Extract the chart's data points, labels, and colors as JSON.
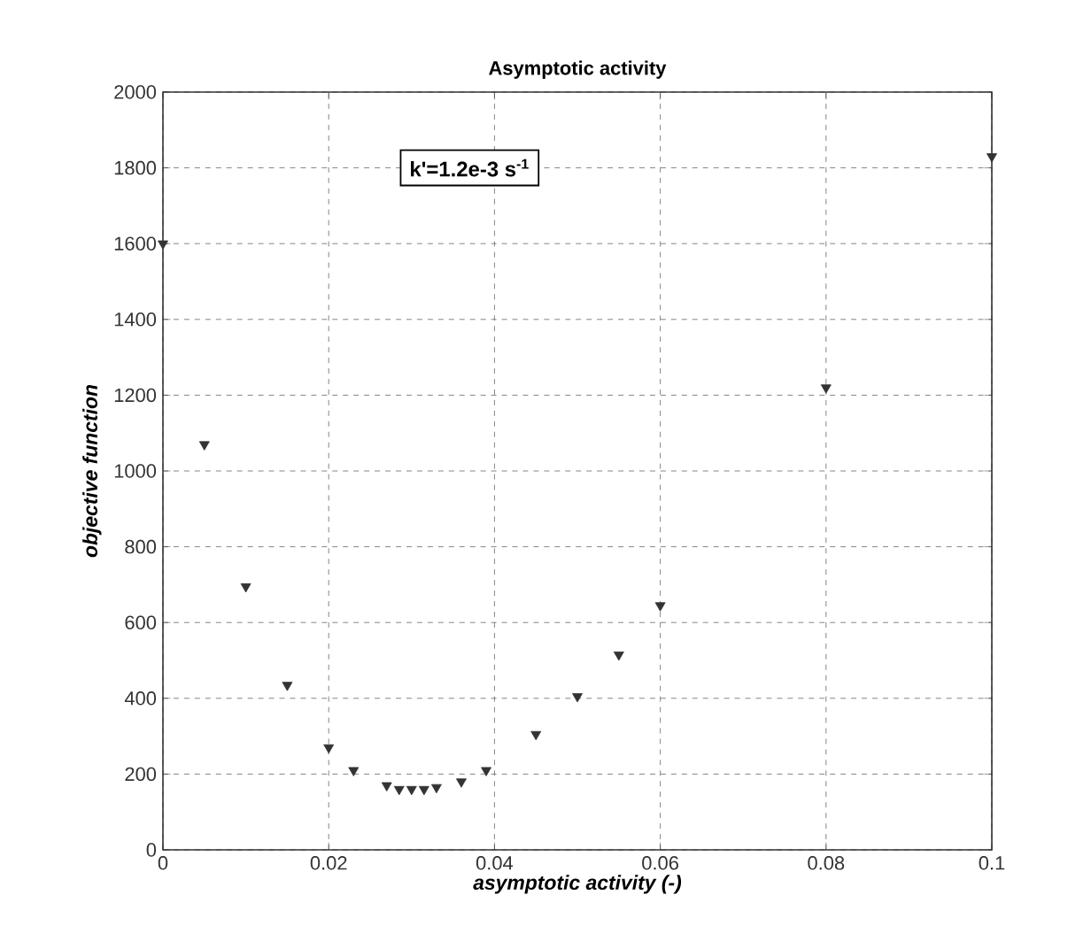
{
  "chart_data": {
    "type": "scatter",
    "title": "Asymptotic activity",
    "xlabel": "asymptotic activity (-)",
    "ylabel": "objective function",
    "x": [
      0,
      0.005,
      0.01,
      0.015,
      0.02,
      0.023,
      0.027,
      0.0285,
      0.03,
      0.0315,
      0.033,
      0.036,
      0.039,
      0.045,
      0.05,
      0.055,
      0.06,
      0.08,
      0.1
    ],
    "series": [
      {
        "color": "#333333",
        "values": [
          1600,
          1070,
          695,
          435,
          270,
          210,
          170,
          160,
          160,
          160,
          165,
          180,
          210,
          305,
          405,
          515,
          645,
          1220,
          1830
        ]
      }
    ],
    "marker": "triangle",
    "xlim": [
      0,
      0.1
    ],
    "ylim": [
      0,
      2000
    ],
    "xticks": [
      0,
      0.02,
      0.04,
      0.06,
      0.08,
      0.1
    ],
    "yticks": [
      0,
      200,
      400,
      600,
      800,
      1000,
      1200,
      1400,
      1600,
      1800,
      2000
    ],
    "grid": true,
    "annotations": [
      "**k'=1.2e-3 s$^{-1}$**"
    ]
  }
}
